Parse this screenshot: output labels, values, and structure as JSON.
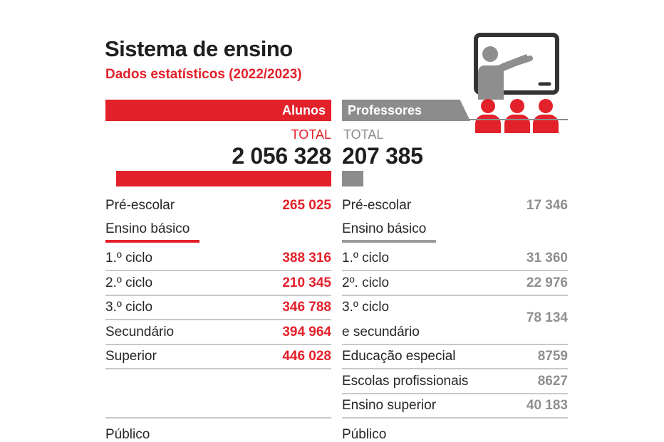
{
  "title": "Sistema de ensino",
  "subtitle": "Dados estatísticos (2022/2023)",
  "colors": {
    "red": "#e3212b",
    "gray": "#8c8c8c",
    "gray_value": "#8f8f8f",
    "ink": "#262626"
  },
  "icons": {
    "teacher": "teacher-board-icon",
    "audience": "students-group-icon"
  },
  "alunos": {
    "header": "Alunos",
    "total_label": "TOTAL",
    "total": "2 056 328",
    "total_value": 2056328,
    "pre": {
      "label": "Pré-escolar",
      "value": "265 025"
    },
    "section": "Ensino básico",
    "rows": [
      {
        "label": "1.º ciclo",
        "value": "388 316"
      },
      {
        "label": "2.º ciclo",
        "value": "210 345"
      },
      {
        "label": "3.º ciclo",
        "value": "346 788"
      },
      {
        "label": "Secundário",
        "value": "394 964"
      },
      {
        "label": "Superior",
        "value": "446 028"
      }
    ],
    "footer": "Público"
  },
  "professores": {
    "header": "Professores",
    "total_label": "TOTAL",
    "total": "207 385",
    "total_value": 207385,
    "pre": {
      "label": "Pré-escolar",
      "value": "17 346"
    },
    "section": "Ensino básico",
    "rows": [
      {
        "label": "1.º ciclo",
        "value": "31 360"
      },
      {
        "label": "2º. ciclo",
        "value": "22 976"
      },
      {
        "label": "3.º ciclo",
        "label2": "e secundário",
        "value": "78 134"
      },
      {
        "label": "Educação especial",
        "value": "8759"
      },
      {
        "label": "Escolas profissionais",
        "value": "8627"
      },
      {
        "label": "Ensino superior",
        "value": "40 183"
      }
    ],
    "footer": "Público"
  }
}
